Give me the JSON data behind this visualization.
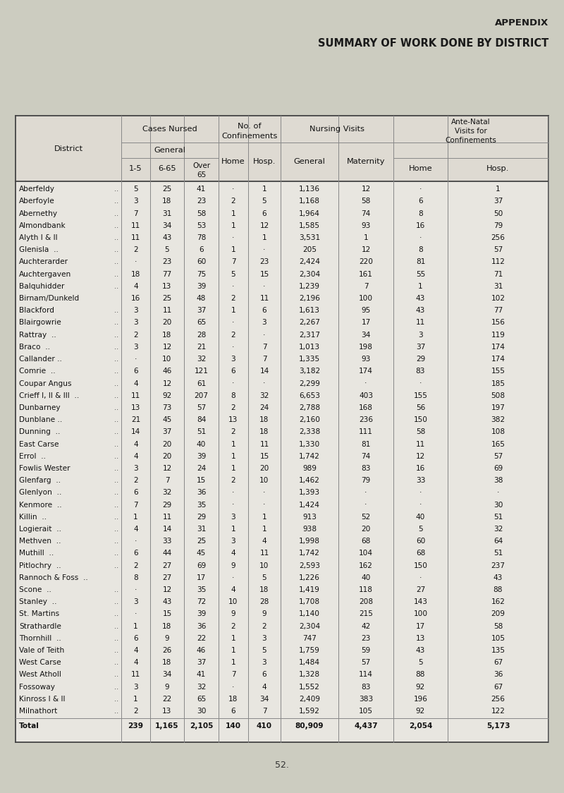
{
  "title_appendix": "APPENDIX",
  "title_main": "SUMMARY OF WORK DONE BY DISTRICT",
  "page_number": "52.",
  "bg_color": "#ccccc0",
  "table_bg": "#d8d5cc",
  "rows": [
    [
      "Aberfeldy",
      "..",
      "5",
      "25",
      "41",
      "-",
      "1",
      "1,136",
      "12",
      "-",
      "1"
    ],
    [
      "Aberfoyle",
      "..",
      "3",
      "18",
      "23",
      "2",
      "5",
      "1,168",
      "58",
      "6",
      "37"
    ],
    [
      "Abernethy",
      "..",
      "7",
      "31",
      "58",
      "1",
      "6",
      "1,964",
      "74",
      "8",
      "50"
    ],
    [
      "Almondbank",
      "..",
      "11",
      "34",
      "53",
      "1",
      "12",
      "1,585",
      "93",
      "16",
      "79"
    ],
    [
      "Alyth I & II",
      "..",
      "11",
      "43",
      "78",
      "-",
      "1",
      "3,531",
      "1",
      "-",
      "256"
    ],
    [
      "Glenisla  ..",
      "..",
      "2",
      "5",
      "6",
      "1",
      "-",
      "205",
      "12",
      "8",
      "57"
    ],
    [
      "Auchterarder",
      "..",
      "-",
      "23",
      "60",
      "7",
      "23",
      "2,424",
      "220",
      "81",
      "112"
    ],
    [
      "Auchtergaven",
      "..",
      "18",
      "77",
      "75",
      "5",
      "15",
      "2,304",
      "161",
      "55",
      "71"
    ],
    [
      "Balquhidder",
      "..",
      "4",
      "13",
      "39",
      "-",
      "-",
      "1,239",
      "7",
      "1",
      "31"
    ],
    [
      "Birnam/Dunkeld",
      "",
      "16",
      "25",
      "48",
      "2",
      "11",
      "2,196",
      "100",
      "43",
      "102"
    ],
    [
      "Blackford",
      "..",
      "3",
      "11",
      "37",
      "1",
      "6",
      "1,613",
      "95",
      "43",
      "77"
    ],
    [
      "Blairgowrie",
      "..",
      "3",
      "20",
      "65",
      "-",
      "3",
      "2,267",
      "17",
      "11",
      "156"
    ],
    [
      "Rattray  ..",
      "..",
      "2",
      "18",
      "28",
      "2",
      "-",
      "2,317",
      "34",
      "3",
      "119"
    ],
    [
      "Braco  ..",
      "..",
      "3",
      "12",
      "21",
      "-",
      "7",
      "1,013",
      "198",
      "37",
      "174"
    ],
    [
      "Callander ..",
      "..",
      "-",
      "10",
      "32",
      "3",
      "7",
      "1,335",
      "93",
      "29",
      "174"
    ],
    [
      "Comrie  ..",
      "..",
      "6",
      "46",
      "121",
      "6",
      "14",
      "3,182",
      "174",
      "83",
      "155"
    ],
    [
      "Coupar Angus",
      "..",
      "4",
      "12",
      "61",
      "-",
      "-",
      "2,299",
      "-",
      "-",
      "185"
    ],
    [
      "Crieff I, II & III  ..",
      "..",
      "11",
      "92",
      "207",
      "8",
      "32",
      "6,653",
      "403",
      "155",
      "508"
    ],
    [
      "Dunbarney",
      "..",
      "13",
      "73",
      "57",
      "2",
      "24",
      "2,788",
      "168",
      "56",
      "197"
    ],
    [
      "Dunblane ..",
      "..",
      "21",
      "45",
      "84",
      "13",
      "18",
      "2,160",
      "236",
      "150",
      "382"
    ],
    [
      "Dunning  ..",
      "..",
      "14",
      "37",
      "51",
      "2",
      "18",
      "2,338",
      "111",
      "58",
      "108"
    ],
    [
      "East Carse",
      "..",
      "4",
      "20",
      "40",
      "1",
      "11",
      "1,330",
      "81",
      "11",
      "165"
    ],
    [
      "Errol  ..",
      "..",
      "4",
      "20",
      "39",
      "1",
      "15",
      "1,742",
      "74",
      "12",
      "57"
    ],
    [
      "Fowlis Wester",
      "..",
      "3",
      "12",
      "24",
      "1",
      "20",
      "989",
      "83",
      "16",
      "69"
    ],
    [
      "Glenfarg  ..",
      "..",
      "2",
      "7",
      "15",
      "2",
      "10",
      "1,462",
      "79",
      "33",
      "38"
    ],
    [
      "Glenlyon  ..",
      "..",
      "6",
      "32",
      "36",
      "-",
      "-",
      "1,393",
      "-",
      "-",
      "-"
    ],
    [
      "Kenmore  ..",
      "..",
      "7",
      "29",
      "35",
      "-",
      "-",
      "1,424",
      "-",
      "-",
      "30"
    ],
    [
      "Killin  ..",
      "..",
      "1",
      "11",
      "29",
      "3",
      "1",
      "913",
      "52",
      "40",
      "51"
    ],
    [
      "Logierait  ..",
      "..",
      "4",
      "14",
      "31",
      "1",
      "1",
      "938",
      "20",
      "5",
      "32"
    ],
    [
      "Methven  ..",
      "..",
      "-",
      "33",
      "25",
      "3",
      "4",
      "1,998",
      "68",
      "60",
      "64"
    ],
    [
      "Muthill  ..",
      "..",
      "6",
      "44",
      "45",
      "4",
      "11",
      "1,742",
      "104",
      "68",
      "51"
    ],
    [
      "Pitlochry  ..",
      "..",
      "2",
      "27",
      "69",
      "9",
      "10",
      "2,593",
      "162",
      "150",
      "237"
    ],
    [
      "Rannoch & Foss  ..",
      "",
      "8",
      "27",
      "17",
      "-",
      "5",
      "1,226",
      "40",
      "-",
      "43"
    ],
    [
      "Scone  ..",
      "..",
      "-",
      "12",
      "35",
      "4",
      "18",
      "1,419",
      "118",
      "27",
      "88"
    ],
    [
      "Stanley  ..",
      "..",
      "3",
      "43",
      "72",
      "10",
      "28",
      "1,708",
      "208",
      "143",
      "162"
    ],
    [
      "St. Martins",
      "..",
      "-",
      "15",
      "39",
      "9",
      "9",
      "1,140",
      "215",
      "100",
      "209"
    ],
    [
      "Strathardle",
      "..",
      "1",
      "18",
      "36",
      "2",
      "2",
      "2,304",
      "42",
      "17",
      "58"
    ],
    [
      "Thornhill  ..",
      "..",
      "6",
      "9",
      "22",
      "1",
      "3",
      "747",
      "23",
      "13",
      "105"
    ],
    [
      "Vale of Teith",
      "..",
      "4",
      "26",
      "46",
      "1",
      "5",
      "1,759",
      "59",
      "43",
      "135"
    ],
    [
      "West Carse",
      "..",
      "4",
      "18",
      "37",
      "1",
      "3",
      "1,484",
      "57",
      "5",
      "67"
    ],
    [
      "West Atholl",
      "..",
      "11",
      "34",
      "41",
      "7",
      "6",
      "1,328",
      "114",
      "88",
      "36"
    ],
    [
      "Fossoway",
      "..",
      "3",
      "9",
      "32",
      "-",
      "4",
      "1,552",
      "83",
      "92",
      "67"
    ],
    [
      "Kinross I & II",
      "..",
      "1",
      "22",
      "65",
      "18",
      "34",
      "2,409",
      "383",
      "196",
      "256"
    ],
    [
      "Milnathort",
      "..",
      "2",
      "13",
      "30",
      "6",
      "7",
      "1,592",
      "105",
      "92",
      "122"
    ],
    [
      "Total",
      "",
      "239",
      "1,165",
      "2,105",
      "140",
      "410",
      "80,909",
      "4,437",
      "2,054",
      "5,173"
    ]
  ]
}
